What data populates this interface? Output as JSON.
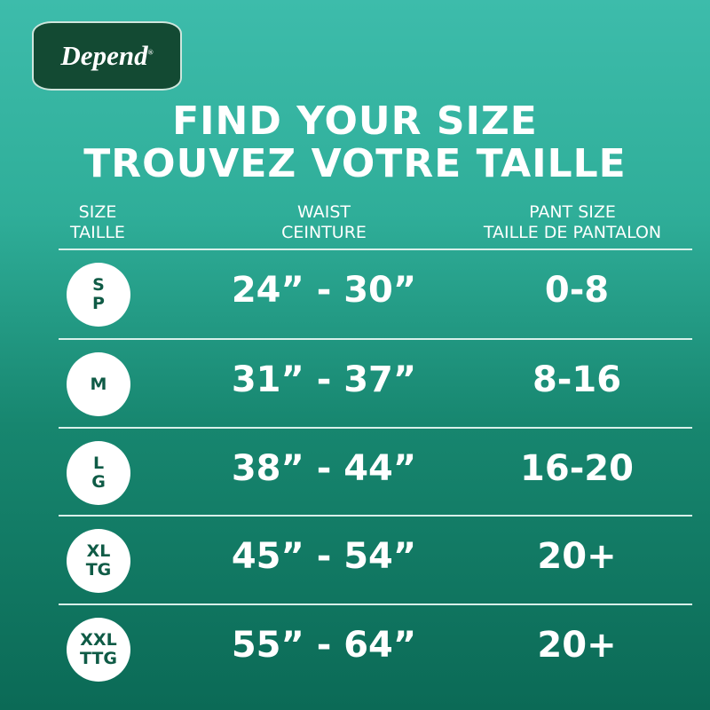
{
  "brand": {
    "logo_text": "Depend",
    "registered": "®"
  },
  "title": {
    "en": "FIND YOUR SIZE",
    "fr": "TROUVEZ VOTRE TAILLE"
  },
  "headers": {
    "size": {
      "en": "SIZE",
      "fr": "TAILLE"
    },
    "waist": {
      "en": "WAIST",
      "fr": "CEINTURE"
    },
    "pant": {
      "en": "PANT SIZE",
      "fr": "TAILLE DE PANTALON"
    }
  },
  "rows": [
    {
      "size_en": "S",
      "size_fr": "P",
      "waist": "24” - 30”",
      "pant": "0-8"
    },
    {
      "size_en": "M",
      "size_fr": "",
      "waist": "31” - 37”",
      "pant": "8-16"
    },
    {
      "size_en": "L",
      "size_fr": "G",
      "waist": "38” - 44”",
      "pant": "16-20"
    },
    {
      "size_en": "XL",
      "size_fr": "TG",
      "waist": "45” - 54”",
      "pant": "20+"
    },
    {
      "size_en": "XXL",
      "size_fr": "TTG",
      "waist": "55” - 64”",
      "pant": "20+"
    }
  ],
  "colors": {
    "background_top": "#3dbcab",
    "background_bottom": "#0b6a56",
    "logo_bg": "#134a33",
    "circle_text": "#0f5b46"
  }
}
